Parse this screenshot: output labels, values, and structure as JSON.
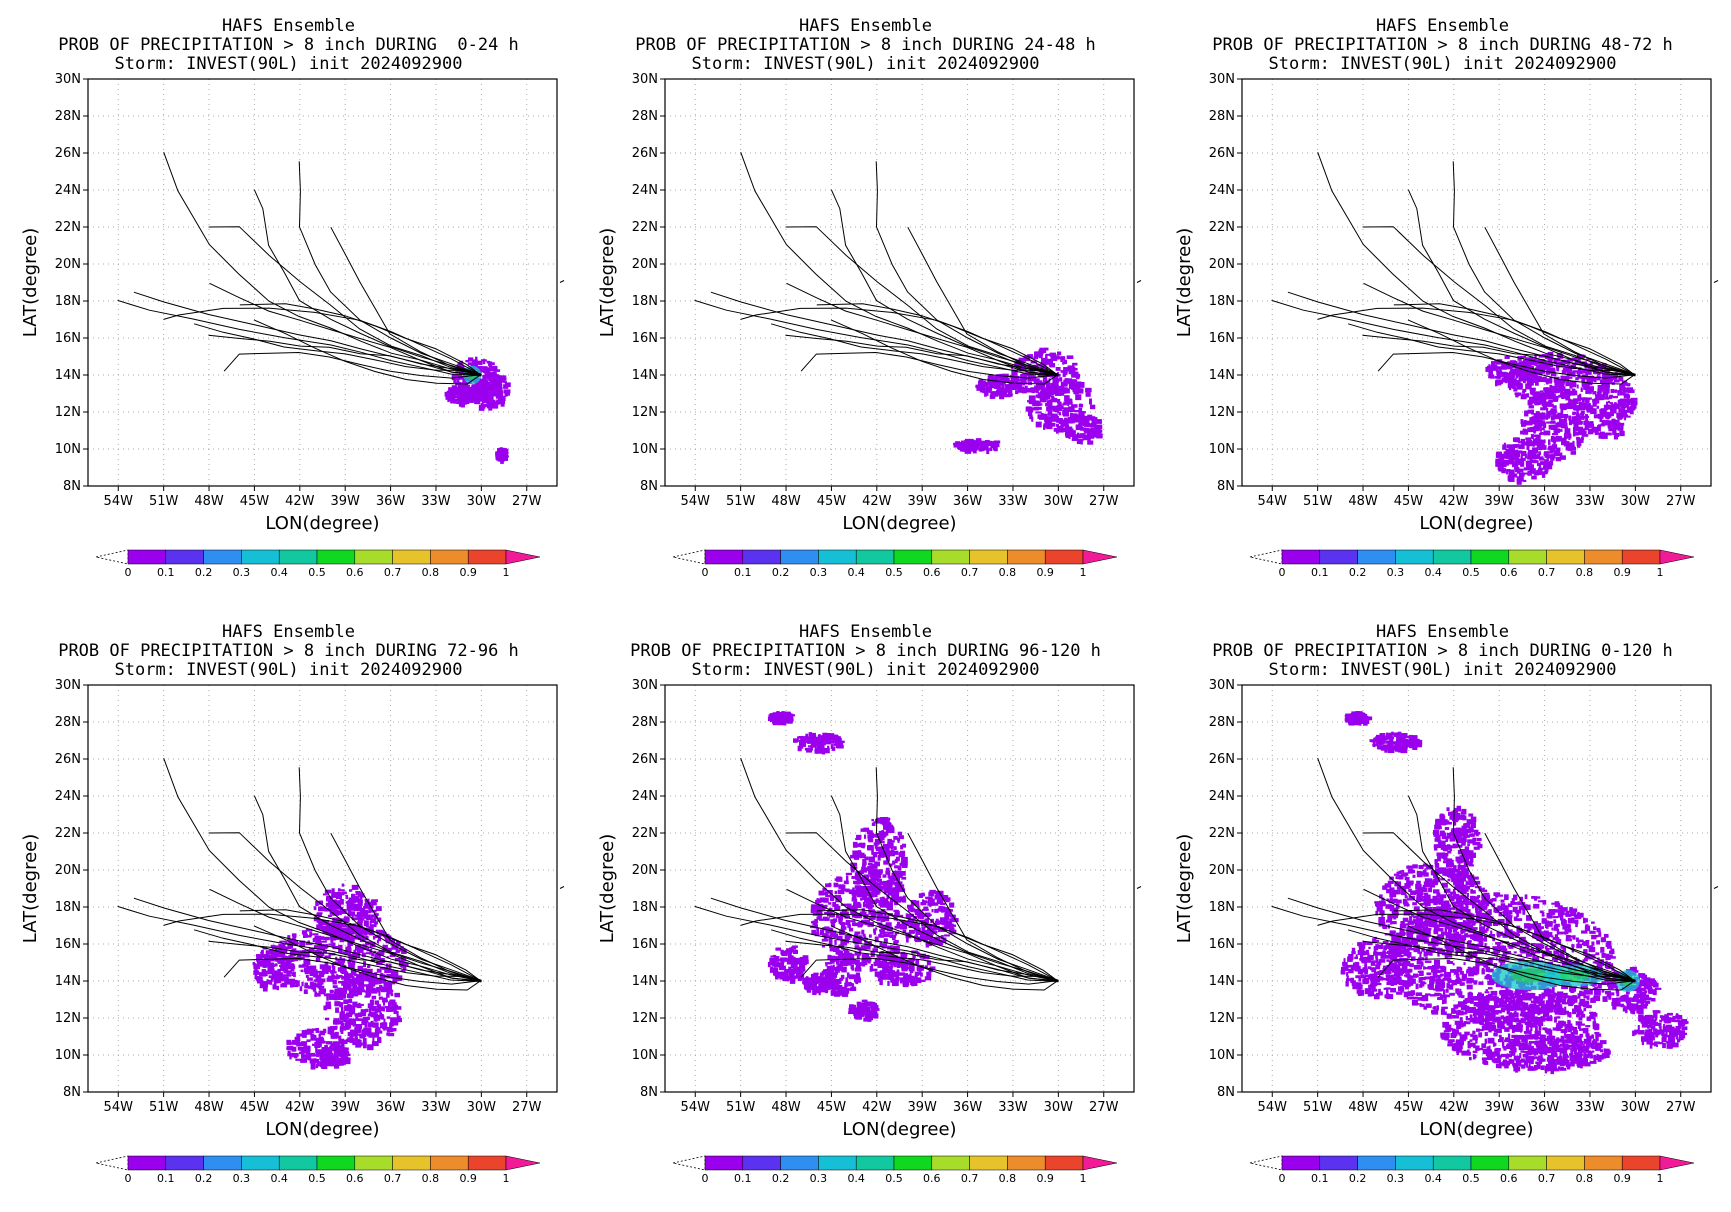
{
  "colors": {
    "prob_fill": "#9a00ee",
    "prob_high": "#12c8c8",
    "track": "#000000",
    "grid": "#aaaaaa",
    "colorbar": [
      "#ffffff",
      "#9a00ee",
      "#5b32ef",
      "#2f8ef2",
      "#15c0d6",
      "#12c8a0",
      "#10d820",
      "#a8dc2a",
      "#e6c32a",
      "#ec8c2a",
      "#ea442d",
      "#f21a96"
    ]
  },
  "common": {
    "line1": "HAFS Ensemble",
    "line3": "Storm: INVEST(90L) init 2024092900",
    "xlabel": "LON(degree)",
    "ylabel": "LAT(degree)",
    "x_ticks": [
      "54W",
      "51W",
      "48W",
      "45W",
      "42W",
      "39W",
      "36W",
      "33W",
      "30W",
      "27W"
    ],
    "y_ticks": [
      "30N",
      "28N",
      "26N",
      "24N",
      "22N",
      "20N",
      "18N",
      "16N",
      "14N",
      "12N",
      "10N",
      "8N"
    ],
    "colorbar_ticks": [
      "0",
      "0.1",
      "0.2",
      "0.3",
      "0.4",
      "0.5",
      "0.6",
      "0.7",
      "0.8",
      "0.9",
      "1"
    ]
  },
  "panels": [
    {
      "line2": "PROB OF PRECIPITATION > 8 inch DURING  0-24 h",
      "field": "p0"
    },
    {
      "line2": "PROB OF PRECIPITATION > 8 inch DURING 24-48 h",
      "field": "p1"
    },
    {
      "line2": "PROB OF PRECIPITATION > 8 inch DURING 48-72 h",
      "field": "p2"
    },
    {
      "line2": "PROB OF PRECIPITATION > 8 inch DURING 72-96 h",
      "field": "p3"
    },
    {
      "line2": "PROB OF PRECIPITATION > 8 inch DURING 96-120 h",
      "field": "p4"
    },
    {
      "line2": "PROB OF PRECIPITATION > 8 inch DURING 0-120 h",
      "field": "p5"
    }
  ],
  "chart_data": {
    "type": "map",
    "lon_range": [
      -56,
      -25
    ],
    "lat_range": [
      8,
      30
    ],
    "ensemble_tracks": [
      [
        [
          -30,
          14
        ],
        [
          -32,
          14.3
        ],
        [
          -34,
          14.8
        ],
        [
          -36,
          15.2
        ],
        [
          -38,
          15.8
        ],
        [
          -40,
          16.5
        ],
        [
          -42,
          17.2
        ],
        [
          -44,
          18
        ],
        [
          -46,
          19.5
        ],
        [
          -48,
          21
        ],
        [
          -50,
          24
        ],
        [
          -51,
          26
        ]
      ],
      [
        [
          -30,
          14
        ],
        [
          -32,
          14.5
        ],
        [
          -34,
          15
        ],
        [
          -36,
          15.5
        ],
        [
          -38,
          16.2
        ],
        [
          -40,
          17
        ],
        [
          -42,
          18
        ],
        [
          -43,
          19.5
        ],
        [
          -44,
          21
        ],
        [
          -44.5,
          23
        ],
        [
          -45,
          24
        ]
      ],
      [
        [
          -30,
          14
        ],
        [
          -32,
          14.6
        ],
        [
          -34,
          15.2
        ],
        [
          -36,
          16
        ],
        [
          -38,
          17
        ],
        [
          -40,
          18.5
        ],
        [
          -41,
          20
        ],
        [
          -42,
          22
        ],
        [
          -42,
          24
        ],
        [
          -42,
          25.5
        ]
      ],
      [
        [
          -30,
          14
        ],
        [
          -32,
          14.4
        ],
        [
          -34,
          15
        ],
        [
          -36,
          15.6
        ],
        [
          -38,
          16.5
        ],
        [
          -40,
          17.8
        ],
        [
          -42,
          19
        ],
        [
          -44,
          20.5
        ],
        [
          -46,
          22
        ],
        [
          -48,
          22
        ]
      ],
      [
        [
          -30,
          14
        ],
        [
          -32,
          14.2
        ],
        [
          -34,
          14.6
        ],
        [
          -36,
          15
        ],
        [
          -38,
          15.4
        ],
        [
          -40,
          15.8
        ],
        [
          -42,
          16.2
        ],
        [
          -45,
          16.7
        ],
        [
          -48,
          17.3
        ],
        [
          -51,
          18
        ],
        [
          -53,
          18.5
        ]
      ],
      [
        [
          -30,
          14
        ],
        [
          -32,
          14.1
        ],
        [
          -34,
          14.4
        ],
        [
          -36,
          14.8
        ],
        [
          -38,
          15.2
        ],
        [
          -40,
          15.6
        ],
        [
          -43,
          16
        ],
        [
          -46,
          16.5
        ],
        [
          -49,
          17
        ],
        [
          -52,
          17.5
        ],
        [
          -54,
          18
        ]
      ],
      [
        [
          -30,
          14
        ],
        [
          -32,
          14.3
        ],
        [
          -34,
          14.6
        ],
        [
          -36,
          15
        ],
        [
          -38,
          15.2
        ],
        [
          -40,
          15.5
        ],
        [
          -42,
          15.6
        ],
        [
          -44,
          15.8
        ],
        [
          -46,
          16
        ],
        [
          -48,
          16.2
        ]
      ],
      [
        [
          -30,
          14
        ],
        [
          -32,
          13.8
        ],
        [
          -34,
          14
        ],
        [
          -36,
          14.2
        ],
        [
          -38,
          14.6
        ],
        [
          -40,
          15
        ],
        [
          -42,
          15.2
        ],
        [
          -44,
          15.2
        ],
        [
          -46,
          15.1
        ],
        [
          -47,
          14.2
        ]
      ],
      [
        [
          -30,
          14
        ],
        [
          -31,
          13.5
        ],
        [
          -33,
          13.6
        ],
        [
          -35,
          13.8
        ],
        [
          -37,
          14.2
        ],
        [
          -39,
          14.8
        ],
        [
          -41,
          15.5
        ],
        [
          -43,
          16.2
        ],
        [
          -45,
          17
        ]
      ],
      [
        [
          -30,
          14
        ],
        [
          -32,
          14.5
        ],
        [
          -34,
          15.2
        ],
        [
          -36,
          16.2
        ],
        [
          -37,
          17.5
        ],
        [
          -38,
          19
        ],
        [
          -39,
          20.5
        ],
        [
          -40,
          22
        ]
      ],
      [
        [
          -30,
          14
        ],
        [
          -31,
          14.6
        ],
        [
          -33,
          15.4
        ],
        [
          -35,
          16
        ],
        [
          -37,
          16.6
        ],
        [
          -39,
          17.2
        ],
        [
          -41,
          17.6
        ],
        [
          -43,
          17.8
        ],
        [
          -46,
          17.8
        ]
      ],
      [
        [
          -30,
          14
        ],
        [
          -32,
          14.9
        ],
        [
          -34,
          15.6
        ],
        [
          -36,
          16.3
        ],
        [
          -38,
          17
        ],
        [
          -41,
          17.4
        ],
        [
          -44,
          17.6
        ],
        [
          -47,
          17.6
        ],
        [
          -50,
          17.2
        ],
        [
          -51,
          17
        ]
      ],
      [
        [
          -30,
          14
        ],
        [
          -32,
          14.2
        ],
        [
          -34,
          14.8
        ],
        [
          -36,
          15.5
        ],
        [
          -38,
          16
        ],
        [
          -40,
          16.5
        ],
        [
          -42,
          17
        ],
        [
          -44,
          17.5
        ],
        [
          -46,
          18.2
        ],
        [
          -48,
          19
        ]
      ],
      [
        [
          -30,
          14
        ],
        [
          -31,
          14.2
        ],
        [
          -33,
          14.3
        ],
        [
          -35,
          14.5
        ],
        [
          -37,
          14.8
        ],
        [
          -39,
          15.1
        ],
        [
          -41,
          15.3
        ],
        [
          -43,
          15.5
        ],
        [
          -45,
          15.9
        ],
        [
          -47,
          16.3
        ],
        [
          -49,
          16.8
        ]
      ]
    ],
    "probability_fields": {
      "p0": {
        "blobs": [
          [
            -30.5,
            13.8,
            1.6,
            1.2
          ],
          [
            -29.5,
            13.2,
            1.2,
            1.0
          ],
          [
            -31.5,
            13.0,
            1.0,
            0.5
          ],
          [
            -28.8,
            9.8,
            0.3,
            0.3
          ]
        ],
        "high": [
          [
            -30.6,
            14.0,
            0.6,
            0.5
          ]
        ]
      },
      "p1": {
        "blobs": [
          [
            -31,
            14.2,
            2.2,
            1.3
          ],
          [
            -30,
            12.5,
            2.2,
            1.4
          ],
          [
            -28.5,
            11.2,
            1.2,
            0.8
          ],
          [
            -34,
            13.5,
            1.5,
            0.6
          ],
          [
            -35.5,
            10.3,
            1.5,
            0.3
          ]
        ],
        "high": []
      },
      "p2": {
        "blobs": [
          [
            -35,
            13.8,
            3.5,
            1.5
          ],
          [
            -35.5,
            11.5,
            2.2,
            2.0
          ],
          [
            -37.5,
            9.5,
            1.8,
            1.2
          ],
          [
            -32,
            12.5,
            1.8,
            1.8
          ],
          [
            -38,
            14.3,
            2.0,
            0.8
          ]
        ],
        "high": []
      },
      "p3": {
        "blobs": [
          [
            -39.5,
            15.2,
            4.5,
            2.0
          ],
          [
            -38,
            12.5,
            2.5,
            2.0
          ],
          [
            -41,
            10.5,
            2.0,
            1.0
          ],
          [
            -39,
            17.8,
            2.2,
            1.5
          ],
          [
            -44,
            14.8,
            1.2,
            1.2
          ],
          [
            -40,
            10,
            1.2,
            0.5
          ]
        ],
        "high": []
      },
      "p4": {
        "blobs": [
          [
            -43,
            17.5,
            3.5,
            2.5
          ],
          [
            -42,
            20.5,
            1.8,
            2.5
          ],
          [
            -44.5,
            14.5,
            1.2,
            1.2
          ],
          [
            -48,
            15,
            1.2,
            1.0
          ],
          [
            -40.5,
            14.8,
            2.0,
            1.0
          ],
          [
            -38.5,
            17.5,
            1.5,
            1.5
          ],
          [
            -46,
            27,
            1.6,
            0.5
          ],
          [
            -48.5,
            28.3,
            0.8,
            0.3
          ],
          [
            -43,
            12.5,
            1.0,
            0.5
          ],
          [
            -46,
            14,
            1.0,
            0.5
          ]
        ],
        "high": []
      },
      "p5": {
        "blobs": [
          [
            -39,
            15.2,
            7.5,
            3.6
          ],
          [
            -37.5,
            11.5,
            5.5,
            2.2
          ],
          [
            -43.5,
            18,
            3.8,
            2.5
          ],
          [
            -42,
            21.5,
            1.6,
            2.0
          ],
          [
            -47,
            14.8,
            2.5,
            1.6
          ],
          [
            -46,
            27,
            1.6,
            0.5
          ],
          [
            -48.5,
            28.3,
            0.8,
            0.3
          ],
          [
            -28.5,
            11.5,
            1.8,
            1.0
          ],
          [
            -36,
            10.2,
            4.0,
            1.0
          ],
          [
            -30.5,
            13.6,
            1.8,
            1.2
          ]
        ],
        "high": [
          [
            -37,
            14.3,
            2.5,
            0.8
          ],
          [
            -30.5,
            14.0,
            0.8,
            0.6
          ],
          [
            -34,
            14.3,
            2.0,
            0.6
          ]
        ]
      }
    }
  }
}
